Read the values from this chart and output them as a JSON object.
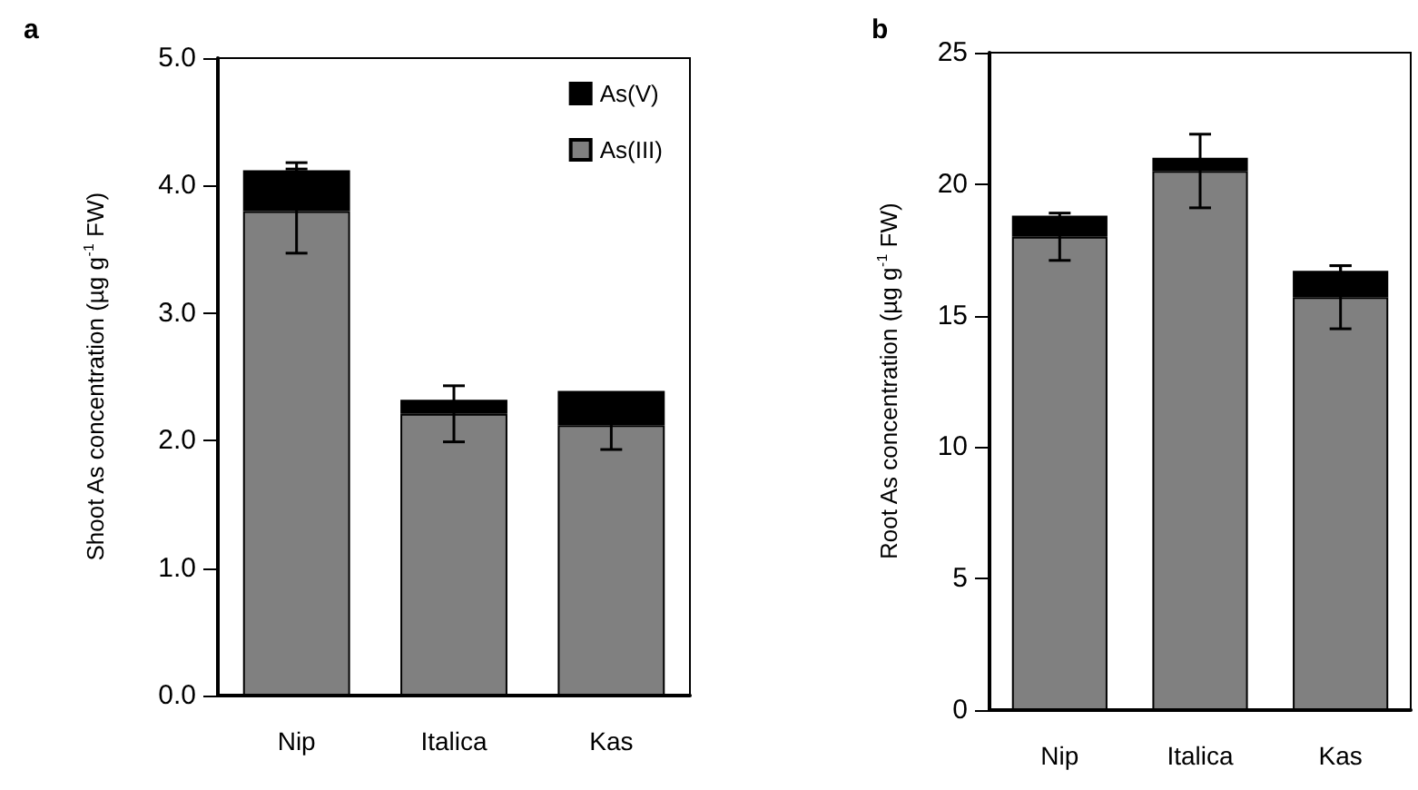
{
  "chart_data": [
    {
      "type": "bar",
      "title": "a",
      "ylabel": "Shoot As concentration (µg g$^{-1}$ FW)",
      "categories": [
        "Nip",
        "Italica",
        "Kas"
      ],
      "stacked": true,
      "series": [
        {
          "name": "As(III)",
          "color": "#808080",
          "values": [
            3.8,
            2.21,
            2.12
          ],
          "errors": [
            0.33,
            0.22,
            0.19
          ]
        },
        {
          "name": "As(V)",
          "color": "#000000",
          "values": [
            0.32,
            0.11,
            0.27
          ],
          "errors": [
            0.06,
            null,
            null
          ]
        }
      ],
      "ylim": [
        0,
        5
      ],
      "yticks": [
        {
          "value": 0,
          "label": "0.0"
        },
        {
          "value": 1,
          "label": "1.0"
        },
        {
          "value": 2,
          "label": "2.0"
        },
        {
          "value": 3,
          "label": "3.0"
        },
        {
          "value": 4,
          "label": "4.0"
        },
        {
          "value": 5,
          "label": "5.0"
        }
      ],
      "grid": false,
      "legend": "top right"
    },
    {
      "type": "bar",
      "title": "b",
      "ylabel": "Root As concentration (µg g$^{-1}$ FW)",
      "categories": [
        "Nip",
        "Italica",
        "Kas"
      ],
      "stacked": true,
      "series": [
        {
          "color": "#808080",
          "values": [
            18.0,
            20.5,
            15.7
          ],
          "errors": [
            0.9,
            1.4,
            1.2
          ]
        },
        {
          "color": "#000000",
          "values": [
            0.8,
            0.5,
            1.0
          ],
          "errors": [
            null,
            null,
            0.2
          ]
        }
      ],
      "ylim": [
        0,
        25
      ],
      "yticks": [
        0,
        5,
        10,
        15,
        20,
        25
      ],
      "grid": false,
      "legend": false
    }
  ]
}
